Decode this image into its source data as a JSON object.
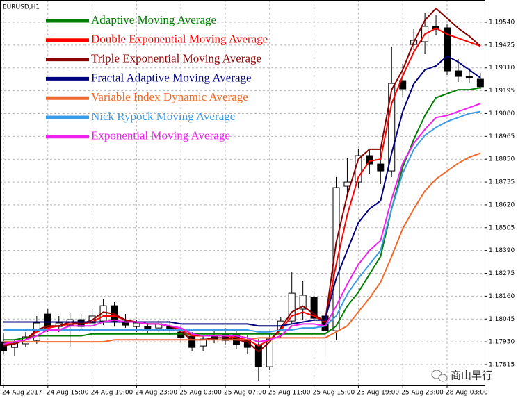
{
  "chart_data": {
    "type": "candlestick",
    "title": "EURUSD,H1",
    "watermark": "商山早行",
    "categories": [
      "24 Aug 2017",
      null,
      null,
      null,
      "24 Aug 15:00",
      null,
      null,
      null,
      "24 Aug 19:00",
      null,
      null,
      null,
      "24 Aug 23:00",
      null,
      null,
      null,
      "25 Aug 03:00",
      null,
      null,
      null,
      "25 Aug 07:00",
      null,
      null,
      null,
      "25 Aug 11:00",
      null,
      null,
      null,
      "25 Aug 15:00",
      null,
      null,
      null,
      "25 Aug 19:00",
      null,
      null,
      null,
      "25 Aug 23:00",
      null,
      null,
      null,
      "28 Aug 03:00",
      null,
      null,
      null
    ],
    "open": [
      1.1793,
      1.17902,
      1.1792,
      1.17937,
      1.1807,
      1.18007,
      1.18014,
      1.18042,
      1.18025,
      1.18035,
      1.18112,
      1.18035,
      1.18007,
      1.18007,
      1.18,
      1.18007,
      1.17979,
      1.17958,
      1.17909,
      1.17958,
      1.17972,
      1.17965,
      1.17937,
      1.17916,
      1.17804,
      1.17972,
      1.18035,
      1.18095,
      1.18154,
      1.1806,
      1.17986,
      1.18714,
      1.18735,
      1.18868,
      1.18826,
      1.18791,
      1.19246,
      1.19428,
      1.19442,
      1.19519,
      1.19512,
      1.19295,
      1.19267,
      1.19253
    ],
    "high": [
      1.17972,
      1.17944,
      1.17979,
      1.1806,
      1.18095,
      1.1806,
      1.18077,
      1.1807,
      1.18095,
      1.18147,
      1.1813,
      1.1807,
      1.18042,
      1.18025,
      1.18042,
      1.18035,
      1.18007,
      1.17979,
      1.17965,
      1.17986,
      1.18,
      1.17986,
      1.17965,
      1.17944,
      1.17972,
      1.18056,
      1.1828,
      1.18235,
      1.18182,
      1.18112,
      1.1876,
      1.18854,
      1.189,
      1.189,
      1.189,
      1.19414,
      1.1933,
      1.19505,
      1.19589,
      1.19575,
      1.1953,
      1.19355,
      1.19309,
      1.19285
    ],
    "low": [
      1.17867,
      1.1786,
      1.17902,
      1.1792,
      1.17979,
      1.17979,
      1.17902,
      1.1799,
      1.18007,
      1.18014,
      1.18007,
      1.18,
      1.17979,
      1.17972,
      1.17979,
      1.17965,
      1.1793,
      1.17885,
      1.17885,
      1.17923,
      1.17916,
      1.17892,
      1.17867,
      1.17734,
      1.1779,
      1.17951,
      1.18021,
      1.18042,
      1.18035,
      1.1786,
      1.17937,
      1.18672,
      1.18707,
      1.18777,
      1.18725,
      1.1876,
      1.19162,
      1.194,
      1.19379,
      1.19477,
      1.19274,
      1.19239,
      1.19232,
      1.19204
    ],
    "close": [
      1.17885,
      1.17923,
      1.17955,
      1.18025,
      1.18,
      1.18025,
      1.18042,
      1.18007,
      1.1806,
      1.18112,
      1.18035,
      1.18014,
      1.18025,
      1.17993,
      1.18021,
      1.17986,
      1.17951,
      1.17902,
      1.17944,
      1.17944,
      1.17937,
      1.17916,
      1.17902,
      1.17804,
      1.17944,
      1.18035,
      1.18175,
      1.18165,
      1.18049,
      1.17986,
      1.18707,
      1.18735,
      1.18868,
      1.18826,
      1.18791,
      1.19232,
      1.19204,
      1.19449,
      1.19519,
      1.19505,
      1.19295,
      1.19267,
      1.1926,
      1.19215
    ],
    "up_color": "#ffffff",
    "down_color": "#000000",
    "series": [
      {
        "name": "Adaptive Moving Average",
        "color": "#008000",
        "values": [
          1.1794,
          1.1794,
          1.1795,
          1.1796,
          1.1796,
          1.1796,
          1.1796,
          1.1796,
          1.1797,
          1.1797,
          1.1797,
          1.1797,
          1.1797,
          1.1797,
          1.1797,
          1.1797,
          1.1797,
          1.1797,
          1.1797,
          1.1797,
          1.1797,
          1.1797,
          1.1797,
          1.1797,
          1.1797,
          1.1797,
          1.1797,
          1.1797,
          1.1797,
          1.1797,
          1.1801,
          1.1811,
          1.1818,
          1.1827,
          1.1836,
          1.186,
          1.1881,
          1.1895,
          1.1907,
          1.1916,
          1.1918,
          1.192,
          1.192,
          1.1921
        ]
      },
      {
        "name": "Double Exponential Moving Average",
        "color": "#ff0000",
        "values": [
          1.1792,
          1.1792,
          1.1794,
          1.1798,
          1.18,
          1.1801,
          1.1802,
          1.1802,
          1.1803,
          1.1806,
          1.1806,
          1.1804,
          1.1803,
          1.1802,
          1.1802,
          1.1801,
          1.1799,
          1.1796,
          1.1796,
          1.1796,
          1.1796,
          1.1795,
          1.1794,
          1.1791,
          1.1794,
          1.1799,
          1.1806,
          1.1808,
          1.1806,
          1.1803,
          1.1832,
          1.1857,
          1.1876,
          1.1884,
          1.1885,
          1.1913,
          1.1927,
          1.1939,
          1.1948,
          1.1951,
          1.1948,
          1.1946,
          1.1944,
          1.1942
        ]
      },
      {
        "name": "Triple Exponential Moving Average",
        "color": "#8b0000",
        "values": [
          1.1791,
          1.1792,
          1.1794,
          1.1799,
          1.1801,
          1.1801,
          1.1803,
          1.1802,
          1.1804,
          1.1808,
          1.1807,
          1.1804,
          1.1803,
          1.1802,
          1.1802,
          1.1801,
          1.1798,
          1.1794,
          1.1794,
          1.1795,
          1.1795,
          1.1794,
          1.1793,
          1.1788,
          1.1793,
          1.18,
          1.1808,
          1.1811,
          1.1807,
          1.1803,
          1.1843,
          1.1867,
          1.1885,
          1.189,
          1.189,
          1.192,
          1.193,
          1.1944,
          1.1955,
          1.1961,
          1.1956,
          1.1951,
          1.1947,
          1.1942
        ]
      },
      {
        "name": "Fractal Adaptive Moving Average",
        "color": "#000080",
        "values": [
          1.1803,
          1.1803,
          1.1803,
          1.1803,
          1.1803,
          1.1803,
          1.1803,
          1.1803,
          1.1803,
          1.1803,
          1.1803,
          1.1803,
          1.1803,
          1.1803,
          1.1803,
          1.1803,
          1.1802,
          1.1802,
          1.1802,
          1.1802,
          1.1802,
          1.1802,
          1.1802,
          1.1801,
          1.1801,
          1.1801,
          1.1802,
          1.1803,
          1.1804,
          1.1804,
          1.1825,
          1.1839,
          1.1853,
          1.186,
          1.1864,
          1.1888,
          1.1909,
          1.1923,
          1.193,
          1.1932,
          1.1937,
          1.1934,
          1.193,
          1.1926
        ]
      },
      {
        "name": "Variable Index Dynamic Average",
        "color": "#f0692a",
        "values": [
          1.1793,
          1.1793,
          1.1793,
          1.1793,
          1.1793,
          1.1793,
          1.1793,
          1.1793,
          1.1793,
          1.1793,
          1.1794,
          1.1794,
          1.1794,
          1.1794,
          1.1794,
          1.1794,
          1.1794,
          1.1794,
          1.1794,
          1.1794,
          1.1794,
          1.1794,
          1.1794,
          1.1795,
          1.1795,
          1.1795,
          1.1795,
          1.1795,
          1.1795,
          1.1795,
          1.1798,
          1.1801,
          1.1808,
          1.1815,
          1.1823,
          1.1836,
          1.185,
          1.186,
          1.1869,
          1.1875,
          1.1879,
          1.1883,
          1.1886,
          1.1888
        ]
      },
      {
        "name": "Nick Rypock Moving Average",
        "color": "#3d9be6",
        "values": [
          1.1799,
          1.1799,
          1.1799,
          1.1799,
          1.1799,
          1.1799,
          1.1799,
          1.1799,
          1.1799,
          1.1799,
          1.1799,
          1.1799,
          1.1799,
          1.1799,
          1.1799,
          1.1799,
          1.1799,
          1.1799,
          1.1799,
          1.1799,
          1.1799,
          1.1799,
          1.1799,
          1.1798,
          1.1798,
          1.1799,
          1.1799,
          1.18,
          1.18,
          1.1801,
          1.1806,
          1.1817,
          1.1825,
          1.1832,
          1.1839,
          1.186,
          1.1878,
          1.189,
          1.1897,
          1.1901,
          1.1904,
          1.1906,
          1.1908,
          1.1909
        ]
      },
      {
        "name": "Exponential Moving Average",
        "color": "#f020f0",
        "values": [
          1.1792,
          1.1793,
          1.1794,
          1.1796,
          1.1799,
          1.1799,
          1.1801,
          1.1801,
          1.1801,
          1.1803,
          1.1804,
          1.1803,
          1.1803,
          1.1802,
          1.1802,
          1.1801,
          1.18,
          1.1797,
          1.1796,
          1.1796,
          1.1796,
          1.1796,
          1.1795,
          1.1793,
          1.1794,
          1.1796,
          1.1801,
          1.1802,
          1.1802,
          1.1801,
          1.1811,
          1.1822,
          1.1832,
          1.1839,
          1.1844,
          1.1865,
          1.1883,
          1.1893,
          1.19,
          1.1906,
          1.1907,
          1.1909,
          1.1911,
          1.1913
        ]
      }
    ],
    "ylim": [
      1.1771,
      1.19652
    ],
    "yticks": [
      {
        "value": 1.1954,
        "label": "1.19540"
      },
      1.19425,
      {
        "value": 1.1931,
        "label": "1.19310"
      },
      1.19195,
      {
        "value": 1.1908,
        "label": "1.19080"
      },
      1.18965,
      {
        "value": 1.1885,
        "label": "1.18850"
      },
      1.18735,
      {
        "value": 1.1862,
        "label": "1.18620"
      },
      1.18505,
      {
        "value": 1.1839,
        "label": "1.18390"
      },
      1.18275,
      {
        "value": 1.1816,
        "label": "1.18160"
      },
      1.18045,
      {
        "value": 1.1793,
        "label": "1.17930"
      },
      1.17815
    ],
    "grid": true
  }
}
